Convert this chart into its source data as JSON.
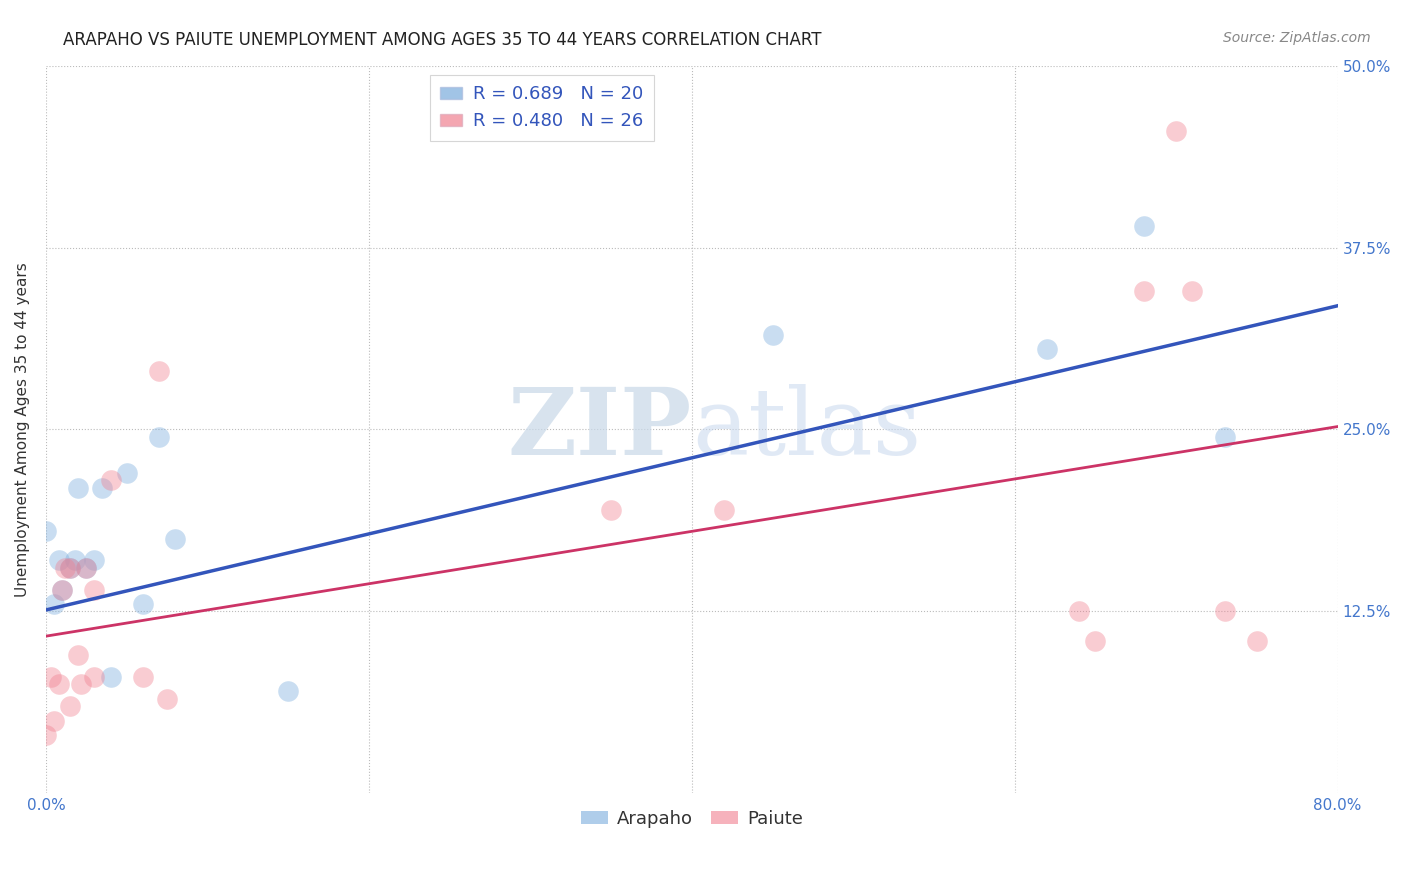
{
  "title": "ARAPAHO VS PAIUTE UNEMPLOYMENT AMONG AGES 35 TO 44 YEARS CORRELATION CHART",
  "source": "Source: ZipAtlas.com",
  "ylabel": "Unemployment Among Ages 35 to 44 years",
  "xlim": [
    0.0,
    0.8
  ],
  "ylim": [
    0.0,
    0.5
  ],
  "ytick_labels": [
    "12.5%",
    "25.0%",
    "37.5%",
    "50.0%"
  ],
  "ytick_values": [
    0.125,
    0.25,
    0.375,
    0.5
  ],
  "background_color": "#ffffff",
  "grid_color": "#cccccc",
  "arapaho_color": "#7aacdc",
  "paiute_color": "#f08090",
  "arapaho_line_color": "#3355bb",
  "paiute_line_color": "#cc3366",
  "arapaho_R": 0.689,
  "arapaho_N": 20,
  "paiute_R": 0.48,
  "paiute_N": 26,
  "arapaho_x": [
    0.0,
    0.005,
    0.008,
    0.01,
    0.015,
    0.018,
    0.02,
    0.025,
    0.03,
    0.035,
    0.04,
    0.05,
    0.06,
    0.07,
    0.08,
    0.15,
    0.45,
    0.62,
    0.68,
    0.73
  ],
  "arapaho_y": [
    0.18,
    0.13,
    0.16,
    0.14,
    0.155,
    0.16,
    0.21,
    0.155,
    0.16,
    0.21,
    0.08,
    0.22,
    0.13,
    0.245,
    0.175,
    0.07,
    0.315,
    0.305,
    0.39,
    0.245
  ],
  "paiute_x": [
    0.0,
    0.003,
    0.005,
    0.008,
    0.01,
    0.012,
    0.015,
    0.015,
    0.02,
    0.022,
    0.025,
    0.03,
    0.03,
    0.04,
    0.06,
    0.07,
    0.075,
    0.35,
    0.42,
    0.64,
    0.65,
    0.68,
    0.7,
    0.71,
    0.73,
    0.75
  ],
  "paiute_y": [
    0.04,
    0.08,
    0.05,
    0.075,
    0.14,
    0.155,
    0.06,
    0.155,
    0.095,
    0.075,
    0.155,
    0.08,
    0.14,
    0.215,
    0.08,
    0.29,
    0.065,
    0.195,
    0.195,
    0.125,
    0.105,
    0.345,
    0.455,
    0.345,
    0.125,
    0.105
  ],
  "title_fontsize": 12,
  "label_fontsize": 11,
  "tick_fontsize": 11,
  "legend_fontsize": 13,
  "source_fontsize": 10
}
